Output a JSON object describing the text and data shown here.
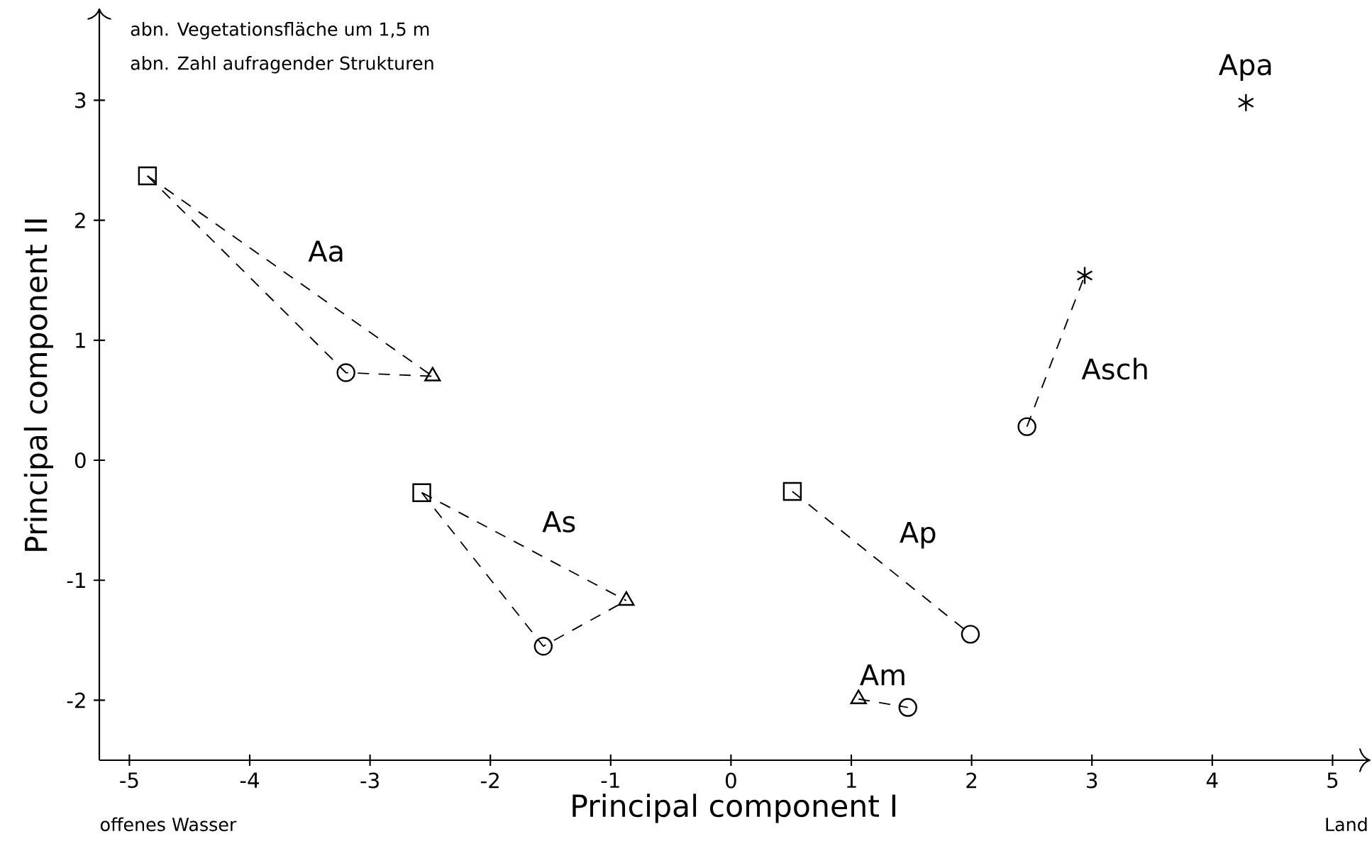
{
  "chart_data": {
    "type": "scatter",
    "xlabel": "Principal component I",
    "ylabel": "Principal component II",
    "xlim": [
      -5.25,
      5.3
    ],
    "ylim": [
      -2.5,
      3.75
    ],
    "xticks": [
      -5,
      -4,
      -3,
      -2,
      -1,
      0,
      1,
      2,
      3,
      4,
      5
    ],
    "yticks": [
      -2,
      -1,
      0,
      1,
      2,
      3
    ],
    "grid": false,
    "series": [
      {
        "type": "line",
        "line_style": "dashed",
        "color": "#000000",
        "x": [
          -4.85,
          -3.2,
          -2.48
        ],
        "values": [
          2.37,
          0.73,
          0.7
        ]
      },
      {
        "type": "line",
        "name": "Aa",
        "line_style": "dashed",
        "color": "#000000",
        "x": [
          -4.85,
          -2.48
        ],
        "values": [
          2.37,
          0.7
        ]
      },
      {
        "type": "line",
        "line_style": "dashed",
        "color": "#000000",
        "x": [
          -2.57,
          -1.56,
          -0.87
        ],
        "values": [
          -0.27,
          -1.55,
          -1.17
        ]
      },
      {
        "type": "line",
        "name": "As",
        "line_style": "dashed",
        "color": "#000000",
        "x": [
          -2.57,
          -0.87
        ],
        "values": [
          -0.27,
          -1.17
        ]
      },
      {
        "type": "line",
        "name": "Ap",
        "line_style": "dashed",
        "color": "#000000",
        "x": [
          0.51,
          1.99
        ],
        "values": [
          -0.26,
          -1.45
        ]
      },
      {
        "type": "line",
        "name": "Am",
        "line_style": "dashed",
        "color": "#000000",
        "x": [
          1.06,
          1.47
        ],
        "values": [
          -1.99,
          -2.06
        ]
      },
      {
        "type": "line",
        "name": "Asch",
        "line_style": "dashed",
        "color": "#000000",
        "x": [
          2.46,
          2.94
        ],
        "values": [
          0.28,
          1.54
        ]
      },
      {
        "marker": "square",
        "color": "#000000",
        "x": [
          -4.85,
          -2.57,
          0.51
        ],
        "values": [
          2.37,
          -0.27,
          -0.26
        ]
      },
      {
        "marker": "circle",
        "color": "#000000",
        "x": [
          -3.2,
          -1.56,
          1.99,
          1.47,
          2.46
        ],
        "values": [
          0.73,
          -1.55,
          -1.45,
          -2.06,
          0.28
        ]
      },
      {
        "marker": "triangle",
        "color": "#000000",
        "x": [
          -2.48,
          -0.87,
          1.06
        ],
        "values": [
          0.7,
          -1.17,
          -1.99
        ]
      },
      {
        "marker": "cross",
        "color": "#000000",
        "x": [
          2.94
        ],
        "values": [
          1.54
        ]
      },
      {
        "marker": "cross",
        "name": "Apa",
        "color": "#000000",
        "x": [
          4.28
        ],
        "values": [
          2.98
        ]
      }
    ],
    "annotations": [
      "abn. Vegetationsfläche um 1,5 m",
      "abn. Zahl aufragender Strukturen",
      "offenes Wasser",
      "Land"
    ]
  }
}
